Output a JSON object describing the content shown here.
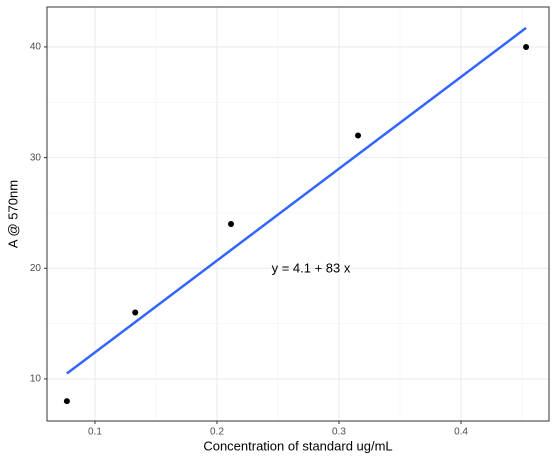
{
  "chart_data": {
    "type": "scatter",
    "x_label": "Concentration of standard ug/mL",
    "y_label": "A @ 570nm",
    "annotation": "y = 4.1 + 83 x",
    "x": [
      0.077,
      0.133,
      0.2115,
      0.3156,
      0.4533
    ],
    "values": [
      8,
      16,
      24,
      32,
      40
    ],
    "color": "#000000",
    "fit_line": {
      "color": "#3366ff",
      "x": [
        0.077,
        0.4533
      ],
      "values": [
        10.49,
        41.72
      ]
    },
    "xlim": [
      0.0607,
      0.4721
    ],
    "ylim": [
      6.2,
      43.61
    ],
    "xticks": [
      0.1,
      0.2,
      0.3,
      0.4
    ],
    "yticks": [
      10,
      20,
      30,
      40
    ],
    "grid": true
  }
}
